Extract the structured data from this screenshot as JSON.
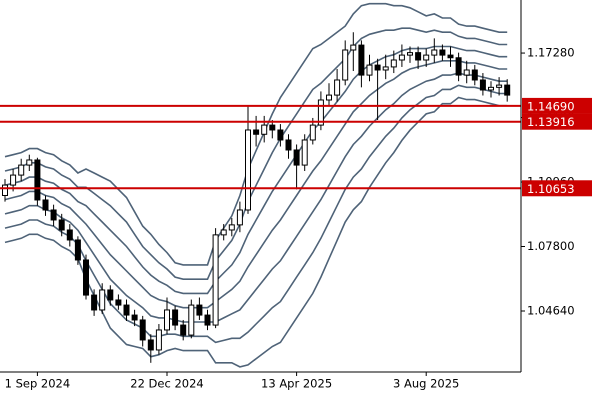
{
  "chart_data": {
    "type": "candlestick",
    "categories": [
      null,
      null,
      null,
      null,
      "1 Sep 2024",
      null,
      null,
      null,
      null,
      null,
      null,
      null,
      null,
      null,
      null,
      null,
      null,
      null,
      null,
      null,
      "22 Dec 2024",
      null,
      null,
      null,
      null,
      null,
      null,
      null,
      null,
      null,
      null,
      null,
      null,
      null,
      null,
      null,
      "13 Apr 2025",
      null,
      null,
      null,
      null,
      null,
      null,
      null,
      null,
      null,
      null,
      null,
      null,
      null,
      null,
      null,
      "3 Aug 2025",
      null,
      null,
      null,
      null,
      null,
      null,
      null,
      null,
      null,
      null
    ],
    "open": [
      1.103,
      1.1081,
      1.113,
      1.1179,
      1.1204,
      1.1008,
      1.0959,
      1.091,
      1.0861,
      1.0812,
      1.0714,
      1.0542,
      1.0469,
      1.0567,
      1.0518,
      1.0493,
      1.0444,
      1.042,
      1.0322,
      1.0273,
      1.0371,
      1.0469,
      1.0395,
      1.0346,
      1.0493,
      1.0444,
      1.0395,
      1.0837,
      1.0861,
      1.0886,
      1.0959,
      1.1351,
      1.133,
      1.1375,
      1.1351,
      1.1302,
      1.1253,
      1.1179,
      1.1302,
      1.1375,
      1.1498,
      1.1522,
      1.1596,
      1.1743,
      1.1767,
      1.162,
      1.1669,
      1.1645,
      1.166,
      1.1694,
      1.1718,
      1.173,
      1.1694,
      1.1718,
      1.1743,
      1.1718,
      1.1705,
      1.162,
      1.1645,
      1.1596,
      1.1547,
      1.156,
      1.1571
    ],
    "high": [
      1.111,
      1.116,
      1.121,
      1.123,
      1.1215,
      1.103,
      1.0985,
      1.094,
      1.089,
      1.083,
      1.074,
      1.057,
      1.06,
      1.059,
      1.0545,
      1.052,
      1.047,
      1.044,
      1.035,
      1.04,
      1.053,
      1.049,
      1.042,
      1.052,
      1.053,
      1.047,
      1.087,
      1.089,
      1.092,
      1.1,
      1.147,
      1.142,
      1.142,
      1.14,
      1.138,
      1.133,
      1.128,
      1.133,
      1.141,
      1.154,
      1.158,
      1.165,
      1.179,
      1.183,
      1.179,
      1.172,
      1.17,
      1.172,
      1.174,
      1.177,
      1.176,
      1.176,
      1.175,
      1.18,
      1.177,
      1.176,
      1.173,
      1.169,
      1.167,
      1.163,
      1.159,
      1.161,
      1.16
    ],
    "low": [
      1.1,
      1.105,
      1.11,
      1.115,
      1.098,
      1.093,
      1.088,
      1.083,
      1.078,
      1.069,
      1.052,
      1.044,
      1.045,
      1.049,
      1.047,
      1.0415,
      1.039,
      1.029,
      1.021,
      1.025,
      1.035,
      1.037,
      1.032,
      1.033,
      1.042,
      1.037,
      1.038,
      1.081,
      1.083,
      1.085,
      1.094,
      1.127,
      1.129,
      1.131,
      1.127,
      1.121,
      1.106,
      1.115,
      1.128,
      1.135,
      1.147,
      1.149,
      1.157,
      1.164,
      1.156,
      1.159,
      1.14,
      1.16,
      1.163,
      1.166,
      1.168,
      1.165,
      1.166,
      1.168,
      1.169,
      1.166,
      1.159,
      1.158,
      1.157,
      1.152,
      1.151,
      1.152,
      1.149
    ],
    "close": [
      1.1081,
      1.113,
      1.1179,
      1.1204,
      1.1008,
      1.0959,
      1.091,
      1.0861,
      1.0812,
      1.0714,
      1.0542,
      1.0469,
      1.0567,
      1.0518,
      1.0493,
      1.0444,
      1.042,
      1.0322,
      1.0273,
      1.0371,
      1.0469,
      1.0395,
      1.0346,
      1.0493,
      1.0444,
      1.0395,
      1.0837,
      1.0861,
      1.0886,
      1.0959,
      1.1351,
      1.133,
      1.1375,
      1.1351,
      1.1302,
      1.1253,
      1.1179,
      1.1302,
      1.1375,
      1.1498,
      1.1522,
      1.1596,
      1.1743,
      1.1767,
      1.162,
      1.1669,
      1.1645,
      1.166,
      1.1694,
      1.1718,
      1.173,
      1.1694,
      1.1718,
      1.1743,
      1.1718,
      1.1705,
      1.162,
      1.1645,
      1.1596,
      1.1547,
      1.156,
      1.1571,
      1.1522
    ],
    "up_color": "#ffffff",
    "down_color": "#000000",
    "line_color": "#4f6378",
    "lines": [
      {
        "values": [
          1.122,
          1.123,
          1.124,
          1.126,
          1.126,
          1.124,
          1.123,
          1.12,
          1.118,
          1.114,
          1.116,
          1.114,
          1.112,
          1.11,
          1.106,
          1.102,
          1.095,
          1.088,
          1.084,
          1.079,
          1.075,
          1.07,
          1.069,
          1.069,
          1.069,
          1.069,
          1.081,
          1.087,
          1.093,
          1.103,
          1.116,
          1.125,
          1.134,
          1.143,
          1.151,
          1.157,
          1.163,
          1.169,
          1.175,
          1.177,
          1.18,
          1.183,
          1.186,
          1.192,
          1.196,
          1.197,
          1.197,
          1.197,
          1.196,
          1.196,
          1.195,
          1.193,
          1.191,
          1.192,
          1.19,
          1.19,
          1.187,
          1.186,
          1.186,
          1.185,
          1.184,
          1.183,
          1.183
        ]
      },
      {
        "values": [
          1.115,
          1.116,
          1.117,
          1.119,
          1.119,
          1.117,
          1.116,
          1.113,
          1.111,
          1.107,
          1.107,
          1.104,
          1.101,
          1.098,
          1.094,
          1.09,
          1.084,
          1.078,
          1.074,
          1.07,
          1.067,
          1.063,
          1.062,
          1.062,
          1.062,
          1.062,
          1.071,
          1.076,
          1.081,
          1.089,
          1.1,
          1.108,
          1.116,
          1.124,
          1.131,
          1.137,
          1.143,
          1.149,
          1.155,
          1.158,
          1.162,
          1.166,
          1.17,
          1.176,
          1.18,
          1.182,
          1.183,
          1.184,
          1.184,
          1.185,
          1.185,
          1.184,
          1.183,
          1.184,
          1.183,
          1.183,
          1.181,
          1.18,
          1.18,
          1.179,
          1.178,
          1.177,
          1.177
        ]
      },
      {
        "values": [
          1.108,
          1.109,
          1.11,
          1.112,
          1.112,
          1.11,
          1.109,
          1.106,
          1.104,
          1.1,
          1.098,
          1.094,
          1.09,
          1.086,
          1.082,
          1.078,
          1.073,
          1.068,
          1.064,
          1.061,
          1.059,
          1.056,
          1.055,
          1.055,
          1.055,
          1.055,
          1.061,
          1.065,
          1.069,
          1.075,
          1.084,
          1.091,
          1.098,
          1.105,
          1.111,
          1.117,
          1.123,
          1.129,
          1.135,
          1.139,
          1.144,
          1.149,
          1.154,
          1.16,
          1.164,
          1.167,
          1.169,
          1.171,
          1.172,
          1.174,
          1.175,
          1.175,
          1.175,
          1.176,
          1.176,
          1.176,
          1.175,
          1.174,
          1.174,
          1.173,
          1.172,
          1.171,
          1.171
        ]
      },
      {
        "values": [
          1.101,
          1.102,
          1.103,
          1.105,
          1.105,
          1.103,
          1.102,
          1.099,
          1.097,
          1.093,
          1.089,
          1.084,
          1.079,
          1.074,
          1.07,
          1.066,
          1.062,
          1.058,
          1.054,
          1.052,
          1.051,
          1.049,
          1.048,
          1.048,
          1.048,
          1.048,
          1.051,
          1.054,
          1.057,
          1.061,
          1.068,
          1.074,
          1.08,
          1.086,
          1.091,
          1.097,
          1.103,
          1.109,
          1.115,
          1.12,
          1.126,
          1.132,
          1.138,
          1.144,
          1.148,
          1.152,
          1.155,
          1.158,
          1.16,
          1.163,
          1.165,
          1.166,
          1.167,
          1.168,
          1.169,
          1.169,
          1.169,
          1.168,
          1.168,
          1.167,
          1.166,
          1.165,
          1.165
        ]
      },
      {
        "values": [
          1.094,
          1.095,
          1.096,
          1.098,
          1.098,
          1.096,
          1.095,
          1.092,
          1.09,
          1.086,
          1.08,
          1.074,
          1.068,
          1.062,
          1.058,
          1.054,
          1.051,
          1.048,
          1.044,
          1.043,
          1.043,
          1.042,
          1.041,
          1.041,
          1.041,
          1.041,
          1.041,
          1.043,
          1.045,
          1.047,
          1.052,
          1.057,
          1.062,
          1.067,
          1.071,
          1.077,
          1.083,
          1.089,
          1.095,
          1.101,
          1.108,
          1.115,
          1.122,
          1.128,
          1.132,
          1.137,
          1.141,
          1.145,
          1.148,
          1.152,
          1.155,
          1.157,
          1.159,
          1.16,
          1.162,
          1.162,
          1.163,
          1.162,
          1.162,
          1.161,
          1.16,
          1.159,
          1.159
        ]
      },
      {
        "values": [
          1.087,
          1.088,
          1.089,
          1.091,
          1.091,
          1.089,
          1.088,
          1.085,
          1.083,
          1.079,
          1.071,
          1.064,
          1.057,
          1.05,
          1.046,
          1.042,
          1.04,
          1.038,
          1.034,
          1.034,
          1.035,
          1.035,
          1.034,
          1.034,
          1.034,
          1.034,
          1.031,
          1.032,
          1.033,
          1.033,
          1.036,
          1.04,
          1.044,
          1.048,
          1.051,
          1.057,
          1.063,
          1.069,
          1.075,
          1.082,
          1.09,
          1.098,
          1.106,
          1.112,
          1.116,
          1.122,
          1.127,
          1.132,
          1.136,
          1.141,
          1.145,
          1.148,
          1.151,
          1.152,
          1.155,
          1.155,
          1.157,
          1.156,
          1.156,
          1.155,
          1.154,
          1.153,
          1.153
        ]
      },
      {
        "values": [
          1.08,
          1.081,
          1.082,
          1.084,
          1.084,
          1.082,
          1.081,
          1.078,
          1.076,
          1.072,
          1.062,
          1.054,
          1.046,
          1.038,
          1.034,
          1.03,
          1.029,
          1.028,
          1.024,
          1.025,
          1.027,
          1.028,
          1.027,
          1.027,
          1.027,
          1.027,
          1.021,
          1.021,
          1.021,
          1.019,
          1.02,
          1.023,
          1.026,
          1.029,
          1.031,
          1.037,
          1.043,
          1.049,
          1.055,
          1.063,
          1.072,
          1.081,
          1.09,
          1.096,
          1.1,
          1.107,
          1.113,
          1.119,
          1.124,
          1.13,
          1.135,
          1.139,
          1.143,
          1.144,
          1.148,
          1.148,
          1.151,
          1.15,
          1.15,
          1.149,
          1.148,
          1.147,
          1.147
        ]
      }
    ],
    "hlines": [
      {
        "value": 1.1469,
        "label": "1.14690"
      },
      {
        "value": 1.13916,
        "label": "1.13916"
      },
      {
        "value": 1.10653,
        "label": "1.10653"
      }
    ],
    "hline_color": "#cc0000",
    "ylim": [
      1.0165,
      1.1988
    ],
    "yticks": [
      {
        "value": 1.0464,
        "label": "1.04640"
      },
      {
        "value": 1.078,
        "label": "1.07800"
      },
      {
        "value": 1.1096,
        "label": "1.10960"
      },
      {
        "value": 1.1412,
        "label": "1.14120"
      },
      {
        "value": 1.1728,
        "label": "1.17280"
      }
    ]
  }
}
